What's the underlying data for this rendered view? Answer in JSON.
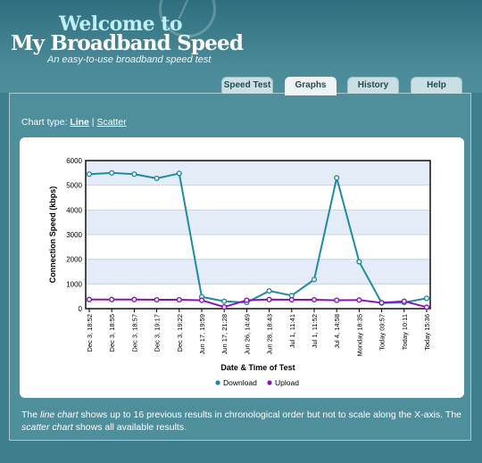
{
  "header": {
    "title_line1": "Welcome to",
    "title_line2": "My Broadband Speed",
    "tagline": "An easy-to-use broadband speed test"
  },
  "tabs": [
    {
      "label": "Speed Test",
      "active": false
    },
    {
      "label": "Graphs",
      "active": true
    },
    {
      "label": "History",
      "active": false
    },
    {
      "label": "Help",
      "active": false
    }
  ],
  "chart_type": {
    "prefix": "Chart type:",
    "line_label": "Line",
    "separator": "|",
    "scatter_label": "Scatter"
  },
  "chart_data": {
    "type": "line",
    "xlabel": "Date & Time of Test",
    "ylabel": "Connection Speed (kbps)",
    "ylim": [
      0,
      6000
    ],
    "yticks": [
      0,
      1000,
      2000,
      3000,
      4000,
      5000,
      6000
    ],
    "categories": [
      "Dec 3, 18:52",
      "Dec 3, 18:55",
      "Dec 3, 18:57",
      "Dec 3, 19:17",
      "Dec 3, 19:22",
      "Jun 17, 19:59",
      "Jun 17, 21:28",
      "Jun 26, 14:49",
      "Jun 28, 18:43",
      "Jul 1, 11:41",
      "Jul 1, 11:52",
      "Jul 4, 14:58",
      "Monday 18:35",
      "Today 09:57",
      "Today 10:11",
      "Today 15:36"
    ],
    "series": [
      {
        "name": "Download",
        "color": "#1f8aa3",
        "values": [
          5450,
          5500,
          5450,
          5280,
          5480,
          480,
          300,
          250,
          720,
          530,
          1180,
          5300,
          1900,
          230,
          250,
          420
        ]
      },
      {
        "name": "Upload",
        "color": "#8a12b8",
        "values": [
          370,
          370,
          370,
          360,
          360,
          340,
          70,
          340,
          370,
          360,
          360,
          340,
          350,
          240,
          300,
          60
        ]
      }
    ],
    "grid": true,
    "legend": "bottom"
  },
  "footer": {
    "part1": "The ",
    "line_chart": "line chart",
    "part2": " shows up to 16 previous results in chronological order but not to scale along the X-axis. The ",
    "scatter_chart": "scatter chart",
    "part3": " shows all available results."
  }
}
